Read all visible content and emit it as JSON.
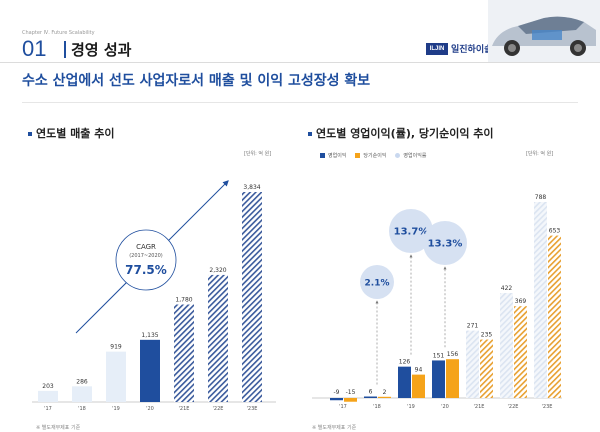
{
  "header": {
    "chapter": "Chapter Ⅳ. Future Scalability",
    "section_number": "01",
    "section_title": "경영 성과",
    "logo_mark": "ILJIN",
    "logo_text": "일진하이솔루스"
  },
  "headline": "수소 산업에서 선도 사업자로서 매출 및 이익 고성장성 확보",
  "colors": {
    "primary": "#1f4e9e",
    "orange": "#f5a31a",
    "pale_blue": "#e6eef8",
    "hatch_blue": "#3a5a9c",
    "hatch_orange": "#e8a030"
  },
  "chart_data": [
    {
      "type": "bar",
      "title": "연도별 매출 추이",
      "unit": "[단위: 억 원]",
      "categories": [
        "'17",
        "'18",
        "'19",
        "'20",
        "'21E",
        "'22E",
        "'23E"
      ],
      "values": [
        203,
        286,
        919,
        1135,
        1780,
        2320,
        3834
      ],
      "labels": [
        "203",
        "286",
        "919",
        "1,135",
        "1,780",
        "2,320",
        "3,834"
      ],
      "annotation": {
        "label": "CAGR",
        "period": "(2017~2020)",
        "value": "77.5%"
      },
      "note": "※ 별도재무제표 기준",
      "ylim": [
        0,
        3834
      ]
    },
    {
      "type": "bar",
      "title": "연도별 영업이익(률), 당기순이익 추이",
      "unit": "[단위: 억 원]",
      "legend": [
        "영업이익",
        "당기순이익",
        "영업이익률"
      ],
      "categories": [
        "'17",
        "'18",
        "'19",
        "'20",
        "'21E",
        "'22E",
        "'23E"
      ],
      "series": [
        {
          "name": "영업이익",
          "values": [
            -9,
            6,
            126,
            151,
            271,
            422,
            788
          ],
          "labels": [
            "-9",
            "6",
            "126",
            "151",
            "271",
            "422",
            "788"
          ]
        },
        {
          "name": "당기순이익",
          "values": [
            -15,
            2,
            94,
            156,
            235,
            369,
            653
          ],
          "labels": [
            "-15",
            "2",
            "94",
            "156",
            "235",
            "369",
            "653"
          ]
        }
      ],
      "margin_bubbles": [
        {
          "category": "'18",
          "label": "2.1%"
        },
        {
          "category": "'19",
          "label": "13.7%"
        },
        {
          "category": "'20",
          "label": "13.3%"
        }
      ],
      "note": "※ 별도재무제표 기준",
      "ylim": [
        -15,
        788
      ]
    }
  ]
}
